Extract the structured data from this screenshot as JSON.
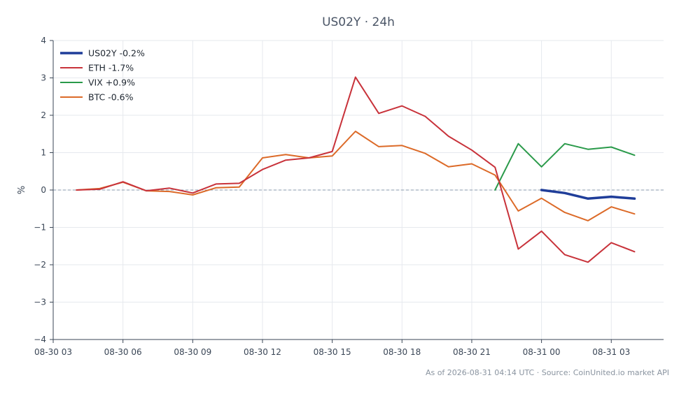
{
  "chart_data": {
    "type": "line",
    "title": "US02Y · 24h",
    "ylabel": "%",
    "xlabel": "",
    "ylim": [
      -4,
      4
    ],
    "yticks": [
      -4,
      -3,
      -2,
      -1,
      0,
      1,
      2,
      3,
      4
    ],
    "ytick_labels": [
      "−4",
      "−3",
      "−2",
      "−1",
      "0",
      "1",
      "2",
      "3",
      "4"
    ],
    "xlim": [
      "2026-08-30 03:00",
      "2026-08-31 05:15"
    ],
    "xticks": [
      "2026-08-30 03:00",
      "2026-08-30 06:00",
      "2026-08-30 09:00",
      "2026-08-30 12:00",
      "2026-08-30 15:00",
      "2026-08-30 18:00",
      "2026-08-30 21:00",
      "2026-08-31 00:00",
      "2026-08-31 03:00"
    ],
    "xtick_labels": [
      "08-30 03",
      "08-30 06",
      "08-30 09",
      "08-30 12",
      "08-30 15",
      "08-30 18",
      "08-30 21",
      "08-31 00",
      "08-31 03"
    ],
    "grid": true,
    "zero_line": true,
    "legend_position": "top-left",
    "series": [
      {
        "name": "US02Y -0.2%",
        "color": "#1f3d99",
        "width": 3.5,
        "x": [
          "2026-08-31 00:00",
          "2026-08-31 01:00",
          "2026-08-31 02:00",
          "2026-08-31 03:00",
          "2026-08-31 04:00"
        ],
        "y": [
          0.0,
          -0.08,
          -0.23,
          -0.18,
          -0.23
        ]
      },
      {
        "name": "ETH -1.7%",
        "color": "#c8323a",
        "width": 2,
        "x": [
          "2026-08-30 04:00",
          "2026-08-30 05:00",
          "2026-08-30 06:00",
          "2026-08-30 07:00",
          "2026-08-30 08:00",
          "2026-08-30 09:00",
          "2026-08-30 10:00",
          "2026-08-30 11:00",
          "2026-08-30 12:00",
          "2026-08-30 13:00",
          "2026-08-30 14:00",
          "2026-08-30 15:00",
          "2026-08-30 16:00",
          "2026-08-30 17:00",
          "2026-08-30 18:00",
          "2026-08-30 19:00",
          "2026-08-30 20:00",
          "2026-08-30 21:00",
          "2026-08-30 22:00",
          "2026-08-30 23:00",
          "2026-08-31 00:00",
          "2026-08-31 01:00",
          "2026-08-31 02:00",
          "2026-08-31 03:00",
          "2026-08-31 04:00"
        ],
        "y": [
          0.0,
          0.02,
          0.22,
          -0.02,
          0.05,
          -0.08,
          0.16,
          0.18,
          0.55,
          0.8,
          0.86,
          1.03,
          3.02,
          2.05,
          2.25,
          1.97,
          1.44,
          1.07,
          0.61,
          -1.58,
          -1.1,
          -1.73,
          -1.93,
          -1.41,
          -1.65
        ]
      },
      {
        "name": "VIX +0.9%",
        "color": "#2a9a4a",
        "width": 2,
        "x": [
          "2026-08-30 22:00",
          "2026-08-30 23:00",
          "2026-08-31 00:00",
          "2026-08-31 01:00",
          "2026-08-31 02:00",
          "2026-08-31 03:00",
          "2026-08-31 04:00"
        ],
        "y": [
          0.0,
          1.24,
          0.62,
          1.24,
          1.09,
          1.15,
          0.93
        ]
      },
      {
        "name": "BTC -0.6%",
        "color": "#dc6a28",
        "width": 2,
        "x": [
          "2026-08-30 04:00",
          "2026-08-30 05:00",
          "2026-08-30 06:00",
          "2026-08-30 07:00",
          "2026-08-30 08:00",
          "2026-08-30 09:00",
          "2026-08-30 10:00",
          "2026-08-30 11:00",
          "2026-08-30 12:00",
          "2026-08-30 13:00",
          "2026-08-30 14:00",
          "2026-08-30 15:00",
          "2026-08-30 16:00",
          "2026-08-30 17:00",
          "2026-08-30 18:00",
          "2026-08-30 19:00",
          "2026-08-30 20:00",
          "2026-08-30 21:00",
          "2026-08-30 22:00",
          "2026-08-30 23:00",
          "2026-08-31 00:00",
          "2026-08-31 01:00",
          "2026-08-31 02:00",
          "2026-08-31 03:00",
          "2026-08-31 04:00"
        ],
        "y": [
          0.0,
          0.04,
          0.21,
          -0.02,
          -0.04,
          -0.13,
          0.06,
          0.08,
          0.86,
          0.95,
          0.86,
          0.91,
          1.57,
          1.16,
          1.19,
          0.98,
          0.62,
          0.7,
          0.4,
          -0.56,
          -0.22,
          -0.6,
          -0.82,
          -0.45,
          -0.64
        ]
      }
    ]
  },
  "footer": "As of 2026-08-31 04:14 UTC · Source: CoinUnited.io market API",
  "colors": {
    "axis": "#3a4656",
    "grid": "#e6e9ee",
    "zero_line": "#8a9aac"
  }
}
